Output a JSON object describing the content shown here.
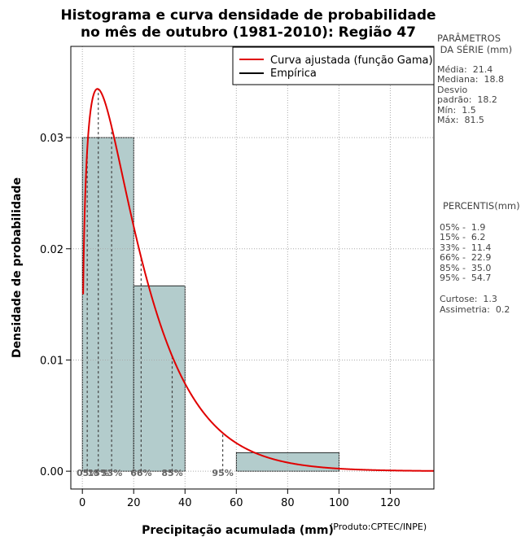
{
  "chart_data": {
    "type": "histogram",
    "title_line1": "Histograma e curva densidade de probabilidade",
    "title_line2": "no mês de outubro (1981-2010): Região 47",
    "xlabel": "Precipitação acumulada (mm)",
    "ylabel": "Densidade de probabilidade",
    "credit": "(Produto:CPTEC/INPE)",
    "xlim": [
      -4.5,
      137
    ],
    "ylim": [
      -0.0016,
      0.0382
    ],
    "x_ticks": [
      0,
      20,
      40,
      60,
      80,
      100,
      120
    ],
    "y_ticks": [
      0.0,
      0.01,
      0.02,
      0.03
    ],
    "y_tick_labels": [
      "0.00",
      "0.01",
      "0.02",
      "0.03"
    ],
    "grid": true,
    "bins": [
      {
        "from": 0,
        "to": 20,
        "density": 0.03
      },
      {
        "from": 20,
        "to": 40,
        "density": 0.01667
      },
      {
        "from": 40,
        "to": 60,
        "density": 0.0
      },
      {
        "from": 60,
        "to": 100,
        "density": 0.00167
      }
    ],
    "gamma_fit": {
      "shape": 1.38,
      "scale": 15.5,
      "color": "#e00000"
    },
    "bar_color": "#b3cccc",
    "percentile_lines": [
      {
        "label": "05%",
        "value": 1.9
      },
      {
        "label": "15%",
        "value": 6.2
      },
      {
        "label": "33%",
        "value": 11.4
      },
      {
        "label": "66%",
        "value": 22.9
      },
      {
        "label": "85%",
        "value": 35.0
      },
      {
        "label": "95%",
        "value": 54.7
      }
    ],
    "legend": {
      "position": "top-right",
      "entries": [
        {
          "label": "Curva ajustada (função Gama)",
          "color": "#e00000"
        },
        {
          "label": "Empírica",
          "color": "#000000"
        }
      ]
    }
  },
  "side_panel": {
    "params_title": "PARÂMETROS\n DA SÉRIE (mm)",
    "params_body": "Média:  21.4\nMediana:  18.8\nDesvio\npadrão:  18.2\nMín:  1.5\nMáx:  81.5",
    "perc_title": "PERCENTIS(mm)",
    "perc_body": "05% -  1.9\n15% -  6.2\n33% -  11.4\n66% -  22.9\n85% -  35.0\n95% -  54.7",
    "stats_body": "Curtose:  1.3\nAssimetria:  0.2"
  }
}
